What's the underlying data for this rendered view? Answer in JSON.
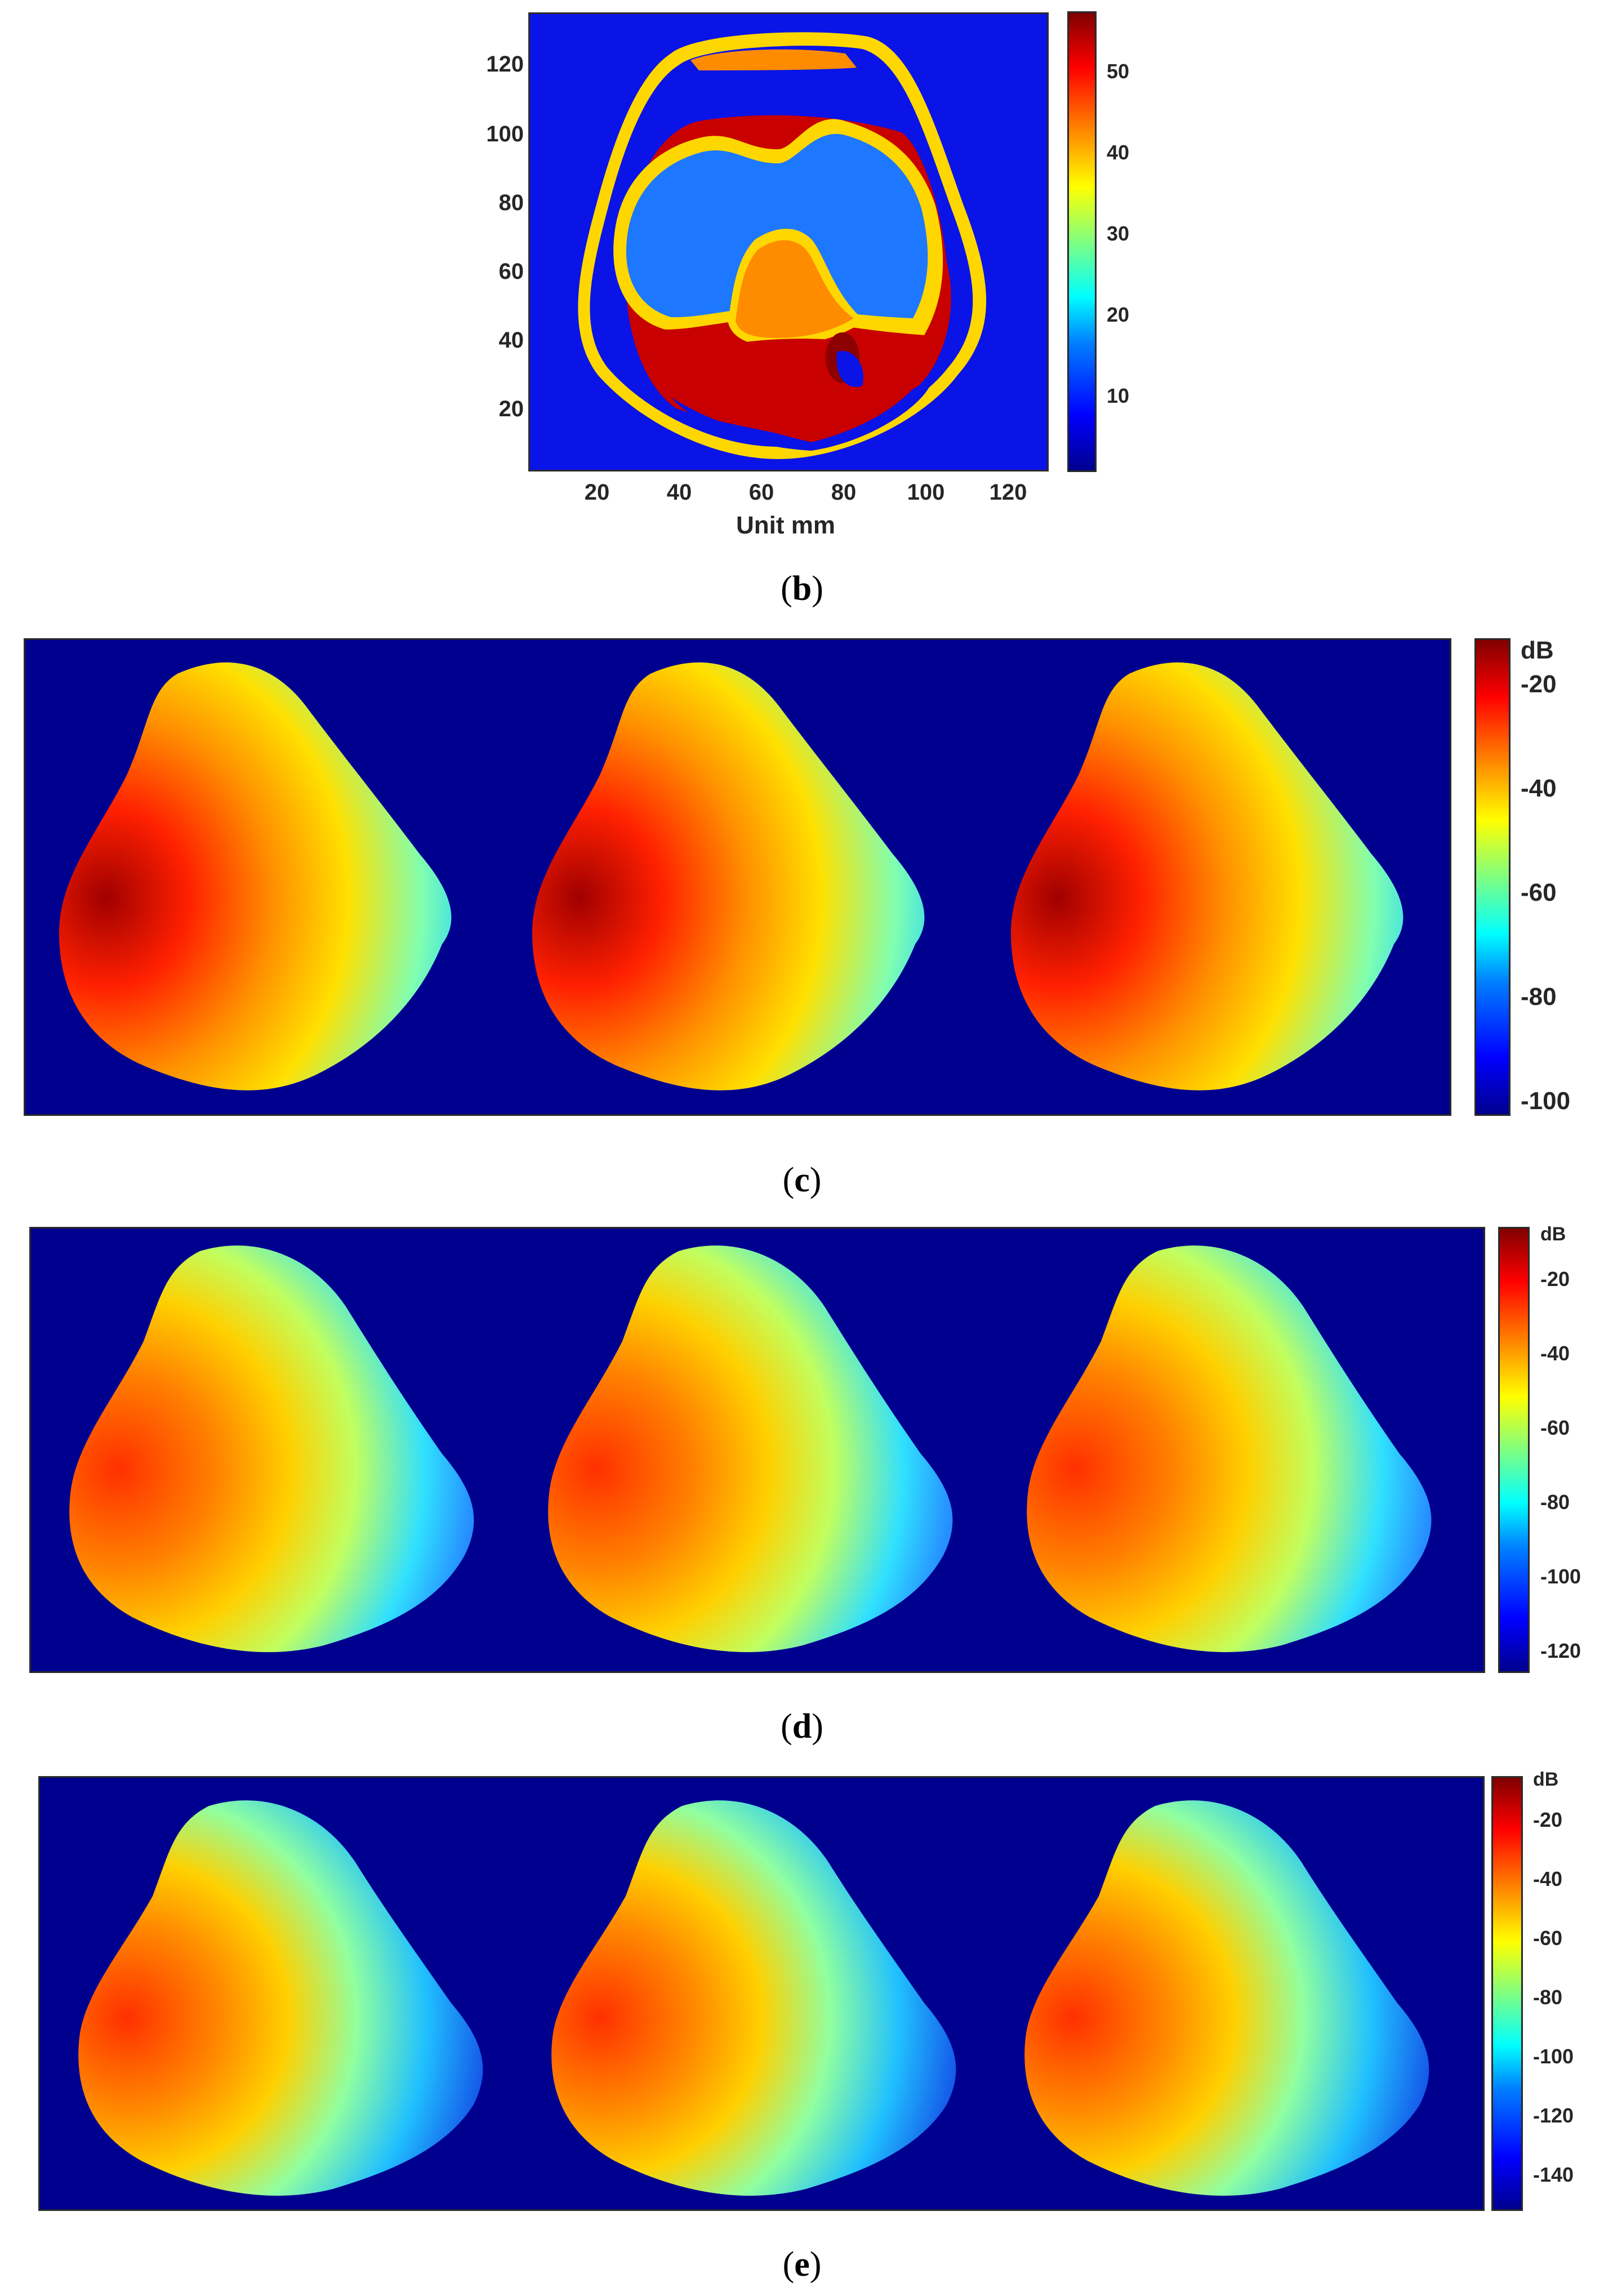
{
  "panel_b": {
    "caption_letter": "b",
    "xlabel": "Unit mm",
    "x_ticks": [
      "20",
      "40",
      "60",
      "80",
      "100",
      "120"
    ],
    "y_ticks": [
      "120",
      "100",
      "80",
      "60",
      "40",
      "20"
    ],
    "colorbar_ticks": [
      "50",
      "40",
      "30",
      "20",
      "10"
    ]
  },
  "panel_c": {
    "caption_letter": "c",
    "colorbar_unit": "dB",
    "colorbar_ticks": [
      "-20",
      "-40",
      "-60",
      "-80",
      "-100"
    ]
  },
  "panel_d": {
    "caption_letter": "d",
    "colorbar_unit": "dB",
    "colorbar_ticks": [
      "-20",
      "-40",
      "-60",
      "-80",
      "-100",
      "-120"
    ]
  },
  "panel_e": {
    "caption_letter": "e",
    "colorbar_unit": "dB",
    "colorbar_ticks": [
      "-20",
      "-40",
      "-60",
      "-80",
      "-100",
      "-120",
      "-140"
    ]
  },
  "colors": {
    "background": "#00008f",
    "bone": "#ff8c00",
    "skin": "#ffd700",
    "muscle": "#c80000",
    "fat": "#0a14e6",
    "cartilage": "#1e78ff"
  },
  "chart_data": [
    {
      "type": "heatmap",
      "title": "",
      "xlabel": "Unit mm",
      "ylabel": "",
      "x_ticks": [
        20,
        40,
        60,
        80,
        100,
        120
      ],
      "y_ticks": [
        20,
        40,
        60,
        80,
        100,
        120
      ],
      "xlim": [
        2,
        130
      ],
      "ylim": [
        0,
        134
      ],
      "colorbar_range": [
        0,
        57
      ],
      "colorbar_ticks": [
        10,
        20,
        30,
        40,
        50
      ]
    },
    {
      "type": "heatmap",
      "panels": 3,
      "colorbar_unit": "dB",
      "colorbar_range": [
        -105,
        -13
      ],
      "colorbar_ticks": [
        -20,
        -40,
        -60,
        -80,
        -100
      ]
    },
    {
      "type": "heatmap",
      "panels": 3,
      "colorbar_unit": "dB",
      "colorbar_range": [
        -130,
        -8
      ],
      "colorbar_ticks": [
        -20,
        -40,
        -60,
        -80,
        -100,
        -120
      ]
    },
    {
      "type": "heatmap",
      "panels": 3,
      "colorbar_unit": "dB",
      "colorbar_range": [
        -150,
        -8
      ],
      "colorbar_ticks": [
        -20,
        -40,
        -60,
        -80,
        -100,
        -120,
        -140
      ]
    }
  ]
}
